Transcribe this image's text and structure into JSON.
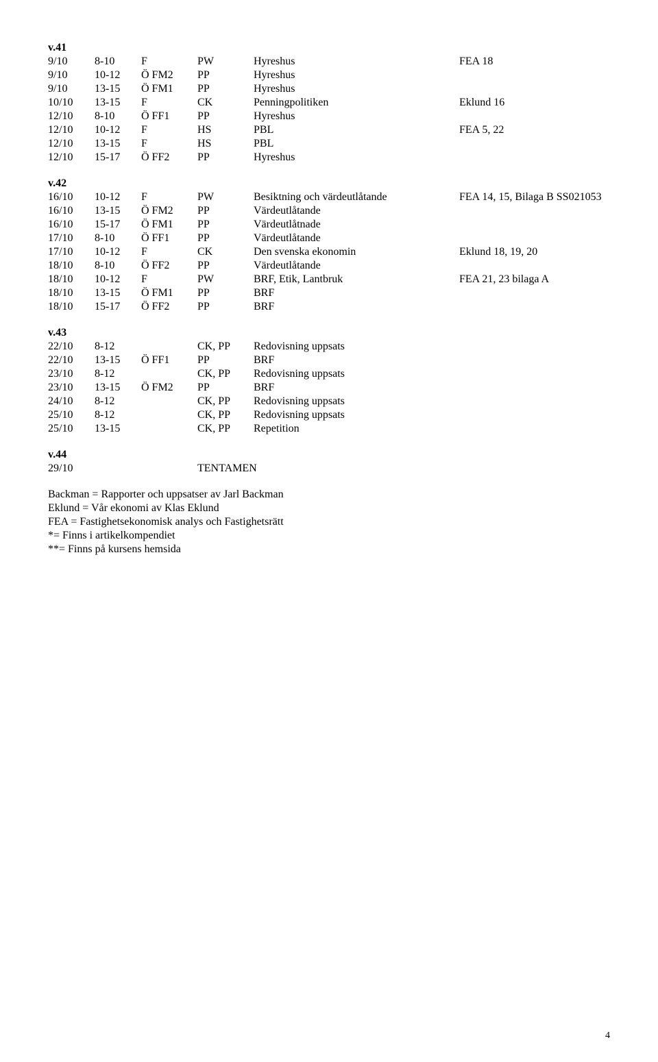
{
  "weeks": [
    {
      "label": "v.41",
      "rows": [
        {
          "date": "9/10",
          "time": "8-10",
          "group": "F",
          "teacher": "PW",
          "topic": "Hyreshus",
          "ref": "FEA 18"
        },
        {
          "date": "9/10",
          "time": "10-12",
          "group": "Ö FM2",
          "teacher": "PP",
          "topic": "Hyreshus",
          "ref": ""
        },
        {
          "date": "9/10",
          "time": "13-15",
          "group": "Ö FM1",
          "teacher": "PP",
          "topic": "Hyreshus",
          "ref": ""
        },
        {
          "date": "10/10",
          "time": "13-15",
          "group": "F",
          "teacher": "CK",
          "topic": "Penningpolitiken",
          "ref": "Eklund 16"
        },
        {
          "date": "12/10",
          "time": "8-10",
          "group": "Ö FF1",
          "teacher": "PP",
          "topic": "Hyreshus",
          "ref": ""
        },
        {
          "date": "12/10",
          "time": "10-12",
          "group": "F",
          "teacher": "HS",
          "topic": "PBL",
          "ref": "FEA 5, 22"
        },
        {
          "date": "12/10",
          "time": "13-15",
          "group": "F",
          "teacher": "HS",
          "topic": "PBL",
          "ref": ""
        },
        {
          "date": "12/10",
          "time": "15-17",
          "group": "Ö FF2",
          "teacher": "PP",
          "topic": "Hyreshus",
          "ref": ""
        }
      ]
    },
    {
      "label": "v.42",
      "rows": [
        {
          "date": "16/10",
          "time": "10-12",
          "group": "F",
          "teacher": "PW",
          "topic": "Besiktning och värdeutlåtande",
          "ref": "FEA 14, 15, Bilaga B SS021053"
        },
        {
          "date": "16/10",
          "time": "13-15",
          "group": "Ö FM2",
          "teacher": "PP",
          "topic": "Värdeutlåtande",
          "ref": ""
        },
        {
          "date": "16/10",
          "time": "15-17",
          "group": "Ö FM1",
          "teacher": "PP",
          "topic": "Värdeutlåtnade",
          "ref": ""
        },
        {
          "date": "17/10",
          "time": "8-10",
          "group": "Ö FF1",
          "teacher": "PP",
          "topic": "Värdeutlåtande",
          "ref": ""
        },
        {
          "date": "17/10",
          "time": "10-12",
          "group": "F",
          "teacher": "CK",
          "topic": "Den svenska ekonomin",
          "ref": "Eklund 18, 19, 20"
        },
        {
          "date": "18/10",
          "time": "8-10",
          "group": "Ö FF2",
          "teacher": "PP",
          "topic": "Värdeutlåtande",
          "ref": ""
        },
        {
          "date": "18/10",
          "time": "10-12",
          "group": "F",
          "teacher": "PW",
          "topic": "BRF, Etik, Lantbruk",
          "ref": "FEA 21, 23 bilaga A"
        },
        {
          "date": "18/10",
          "time": "13-15",
          "group": "Ö FM1",
          "teacher": "PP",
          "topic": "BRF",
          "ref": ""
        },
        {
          "date": "18/10",
          "time": "15-17",
          "group": "Ö FF2",
          "teacher": "PP",
          "topic": "BRF",
          "ref": ""
        }
      ]
    },
    {
      "label": "v.43",
      "rows": [
        {
          "date": "22/10",
          "time": "8-12",
          "group": "",
          "teacher": "CK, PP",
          "topic": "Redovisning uppsats",
          "ref": ""
        },
        {
          "date": "22/10",
          "time": "13-15",
          "group": "Ö FF1",
          "teacher": "PP",
          "topic": "BRF",
          "ref": ""
        },
        {
          "date": "23/10",
          "time": "8-12",
          "group": "",
          "teacher": "CK, PP",
          "topic": "Redovisning uppsats",
          "ref": ""
        },
        {
          "date": "23/10",
          "time": "13-15",
          "group": "Ö FM2",
          "teacher": "PP",
          "topic": "BRF",
          "ref": ""
        },
        {
          "date": "24/10",
          "time": "8-12",
          "group": "",
          "teacher": "CK, PP",
          "topic": "Redovisning uppsats",
          "ref": ""
        },
        {
          "date": "25/10",
          "time": "8-12",
          "group": "",
          "teacher": "CK, PP",
          "topic": "Redovisning uppsats",
          "ref": ""
        },
        {
          "date": "25/10",
          "time": "13-15",
          "group": "",
          "teacher": "CK, PP",
          "topic": "Repetition",
          "ref": ""
        }
      ]
    },
    {
      "label": "v.44",
      "rows": [
        {
          "date": "29/10",
          "time": "",
          "group": "",
          "teacher": "TENTAMEN",
          "topic": "",
          "ref": ""
        }
      ]
    }
  ],
  "footer": {
    "lines": [
      "Backman = Rapporter och uppsatser av Jarl Backman",
      "Eklund = Vår ekonomi av Klas Eklund",
      "FEA = Fastighetsekonomisk analys och Fastighetsrätt",
      "*= Finns i artikelkompendiet",
      "**= Finns på kursens hemsida"
    ]
  },
  "page_number": "4"
}
